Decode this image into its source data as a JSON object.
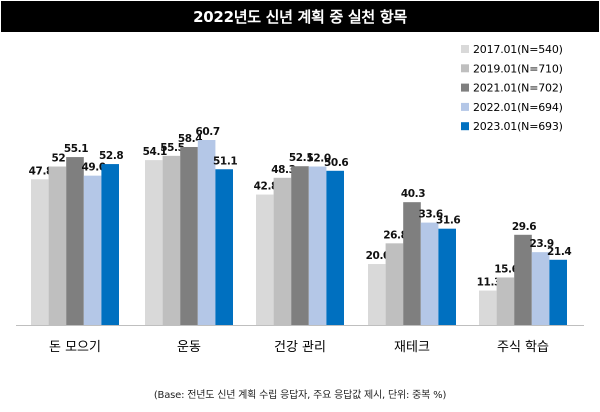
{
  "chart_data": {
    "type": "bar",
    "title": "2022년도 신년 계획 중 실천 항목",
    "categories": [
      "돈 모으기",
      "운동",
      "건강 관리",
      "재테크",
      "주식 학습"
    ],
    "series": [
      {
        "name": "2017.01(N=540)",
        "color": "#d9d9d9",
        "values": [
          47.8,
          54.1,
          42.8,
          20.0,
          11.3
        ],
        "labels": [
          "47.8",
          "54.1",
          "42.8",
          "20.0",
          "11.3"
        ]
      },
      {
        "name": "2019.01(N=710)",
        "color": "#bfbfbf",
        "values": [
          52,
          55.5,
          48.3,
          26.8,
          15.6
        ],
        "labels": [
          "52",
          "55.5",
          "48.3",
          "26.8",
          "15.6"
        ]
      },
      {
        "name": "2021.01(N=702)",
        "color": "#7f7f7f",
        "values": [
          55.1,
          58.4,
          52.1,
          40.3,
          29.6
        ],
        "labels": [
          "55.1",
          "58.4",
          "52.1",
          "40.3",
          "29.6"
        ]
      },
      {
        "name": "2022.01(N=694)",
        "color": "#b4c7e7",
        "values": [
          49.0,
          60.7,
          52.0,
          33.6,
          23.9
        ],
        "labels": [
          "49.0",
          "60.7",
          "52.0",
          "33.6",
          "23.9"
        ]
      },
      {
        "name": "2023.01(N=693)",
        "color": "#0070c0",
        "values": [
          52.8,
          51.1,
          50.6,
          31.6,
          21.4
        ],
        "labels": [
          "52.8",
          "51.1",
          "50.6",
          "31.6",
          "21.4"
        ]
      }
    ],
    "ylim": [
      0,
      70
    ],
    "grid": false,
    "legend": "top-right"
  },
  "footnote": "(Base: 전년도 신년 계획 수립 응답자, 주요 응답값 제시, 단위: 중복 %)"
}
